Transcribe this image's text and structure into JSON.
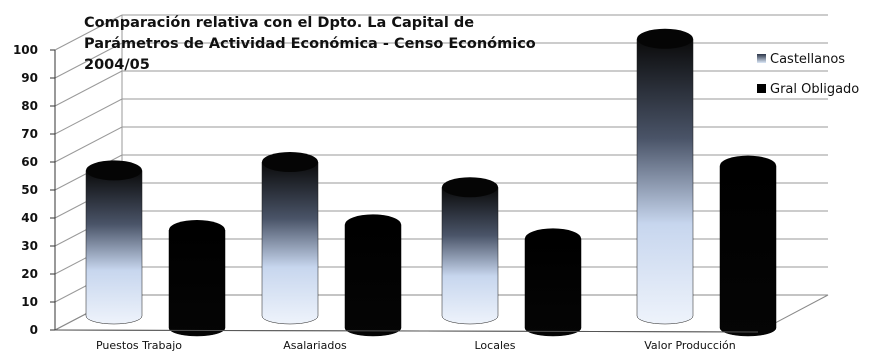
{
  "chart_data": {
    "type": "bar",
    "title_lines": [
      "Comparación relativa con el Dpto. La Capital de",
      "Parámetros de Actividad Económica - Censo Económico",
      "2004/05"
    ],
    "categories": [
      "Puestos Trabajo",
      "Asalariados",
      "Locales",
      "Valor Producción"
    ],
    "series": [
      {
        "name": "Castellanos",
        "values": [
          52,
          55,
          46,
          99
        ]
      },
      {
        "name": "Gral Obligado",
        "values": [
          35,
          37,
          32,
          58
        ]
      }
    ],
    "ylim": [
      0,
      100
    ],
    "yticks": [
      0,
      10,
      20,
      30,
      40,
      50,
      60,
      70,
      80,
      90,
      100
    ],
    "grid": true,
    "legend_position": "right",
    "style": "3d-cylinder",
    "colors": {
      "Castellanos": "#dce8f8",
      "Gral Obligado": "#000000"
    }
  }
}
